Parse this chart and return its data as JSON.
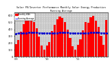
{
  "title": "Solar PV/Inverter Performance Monthly Solar Energy Production Running Average",
  "bar_color": "#FF0000",
  "line_color": "#4444FF",
  "dot_color": "#0000CC",
  "bg_color": "#FFFFFF",
  "plot_bg": "#C8C8C8",
  "grid_color": "#FFFFFF",
  "values": [
    185,
    245,
    370,
    480,
    530,
    565,
    545,
    505,
    415,
    295,
    158,
    98,
    158,
    215,
    380,
    465,
    545,
    590,
    570,
    505,
    395,
    275,
    150,
    105,
    168,
    252,
    388,
    510,
    498,
    582,
    602,
    528,
    438,
    308,
    170,
    540
  ],
  "avg_values": [
    340,
    342,
    345,
    348,
    350,
    352,
    354,
    354,
    352,
    350,
    348,
    346,
    344,
    344,
    346,
    348,
    350,
    352,
    354,
    354,
    352,
    348,
    344,
    342,
    342,
    344,
    346,
    348,
    350,
    352,
    354,
    356,
    354,
    350,
    346,
    344
  ],
  "ylim": [
    0,
    650
  ],
  "yticks": [
    0,
    100,
    200,
    300,
    400,
    500,
    600
  ],
  "ytick_labels": [
    "0",
    "100",
    "200",
    "300",
    "400",
    "500",
    "600"
  ],
  "legend_items": [
    "Monthly kWh",
    "Running Average"
  ],
  "legend_colors": [
    "#FF0000",
    "#4444FF"
  ]
}
